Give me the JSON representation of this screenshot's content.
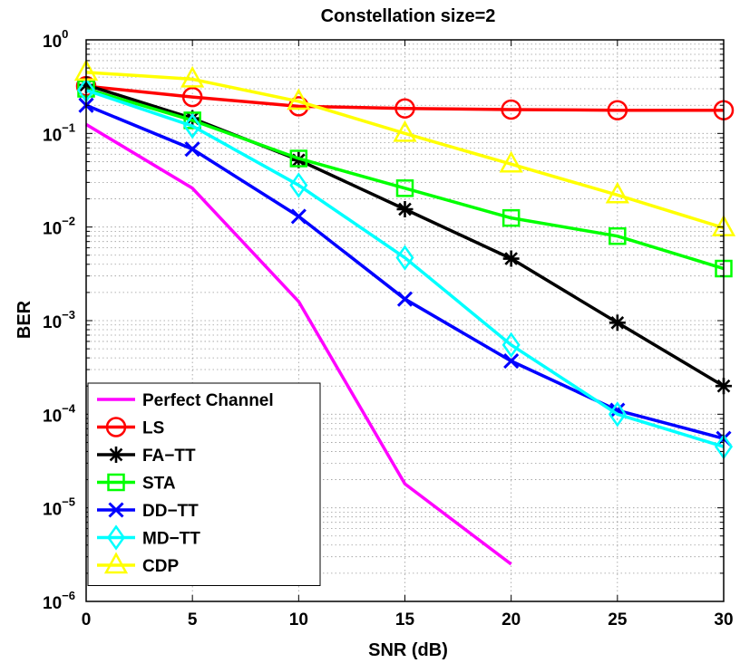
{
  "chart_data": {
    "type": "line",
    "title": "Constellation size=2",
    "xlabel": "SNR (dB)",
    "ylabel": "BER",
    "xlim": [
      0,
      30
    ],
    "ylim": [
      1e-06,
      1
    ],
    "yscale": "log",
    "grid": true,
    "legend_position": "bottom-left",
    "x_ticks": [
      0,
      5,
      10,
      15,
      20,
      25,
      30
    ],
    "x_tick_labels": [
      "0",
      "5",
      "10",
      "15",
      "20",
      "25",
      "30"
    ],
    "y_ticks": [
      {
        "exp": 0,
        "base": "10",
        "exponent": "0"
      },
      {
        "exp": -1,
        "base": "10",
        "exponent": "−1"
      },
      {
        "exp": -2,
        "base": "10",
        "exponent": "−2"
      },
      {
        "exp": -3,
        "base": "10",
        "exponent": "−3"
      },
      {
        "exp": -4,
        "base": "10",
        "exponent": "−4"
      },
      {
        "exp": -5,
        "base": "10",
        "exponent": "−5"
      },
      {
        "exp": -6,
        "base": "10",
        "exponent": "−6"
      }
    ],
    "series": [
      {
        "name": "Perfect Channel",
        "color": "#ff00ff",
        "marker": "none",
        "x": [
          0,
          5,
          10,
          15,
          20
        ],
        "values": [
          0.125,
          0.026,
          0.0016,
          1.8e-05,
          2.5e-06
        ]
      },
      {
        "name": "LS",
        "color": "#ff0000",
        "marker": "circle",
        "x": [
          0,
          5,
          10,
          15,
          20,
          25,
          30
        ],
        "values": [
          0.32,
          0.245,
          0.195,
          0.185,
          0.18,
          0.177,
          0.177
        ]
      },
      {
        "name": "FA−TT",
        "color": "#000000",
        "marker": "asterisk",
        "x": [
          0,
          5,
          10,
          15,
          20,
          25,
          30
        ],
        "values": [
          0.33,
          0.145,
          0.052,
          0.0155,
          0.0046,
          0.00095,
          0.0002
        ]
      },
      {
        "name": "STA",
        "color": "#00ff00",
        "marker": "square",
        "x": [
          0,
          5,
          10,
          15,
          20,
          25,
          30
        ],
        "values": [
          0.3,
          0.138,
          0.054,
          0.026,
          0.0125,
          0.008,
          0.0036
        ]
      },
      {
        "name": "DD−TT",
        "color": "#0000ff",
        "marker": "x",
        "x": [
          0,
          5,
          10,
          15,
          20,
          25,
          30
        ],
        "values": [
          0.2,
          0.068,
          0.013,
          0.0017,
          0.00037,
          0.00011,
          5.5e-05
        ]
      },
      {
        "name": "MD−TT",
        "color": "#00ffff",
        "marker": "diamond",
        "x": [
          0,
          5,
          10,
          15,
          20,
          25,
          30
        ],
        "values": [
          0.29,
          0.12,
          0.028,
          0.0047,
          0.00055,
          0.0001,
          4.5e-05
        ]
      },
      {
        "name": "CDP",
        "color": "#ffff00",
        "marker": "triangle",
        "x": [
          0,
          5,
          10,
          15,
          20,
          25,
          30
        ],
        "values": [
          0.45,
          0.38,
          0.22,
          0.1,
          0.047,
          0.022,
          0.0098
        ]
      }
    ]
  }
}
